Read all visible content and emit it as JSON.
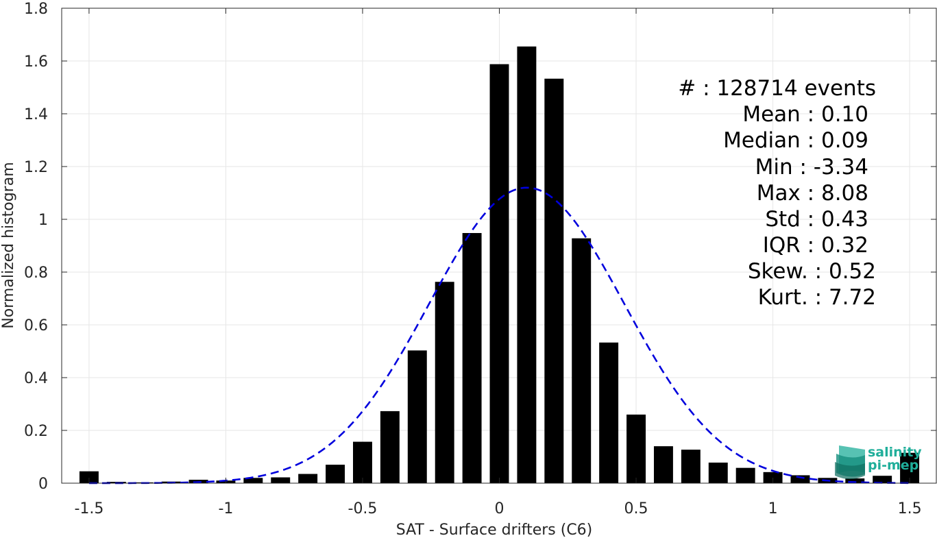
{
  "chart_data": {
    "type": "bar",
    "xlabel": "SAT - Surface drifters (C6)",
    "ylabel": "Normalized histogram",
    "xlim": [
      -1.6,
      1.6
    ],
    "ylim": [
      0,
      1.8
    ],
    "grid": true,
    "x_ticks": [
      -1.5,
      -1,
      -0.5,
      0,
      0.5,
      1,
      1.5
    ],
    "x_tick_labels": [
      "-1.5",
      "-1",
      "-0.5",
      "0",
      "0.5",
      "1",
      "1.5"
    ],
    "y_ticks": [
      0,
      0.2,
      0.4,
      0.6,
      0.8,
      1,
      1.2,
      1.4,
      1.6,
      1.8
    ],
    "y_tick_labels": [
      "0",
      "0.2",
      "0.4",
      "0.6",
      "0.8",
      "1",
      "1.2",
      "1.4",
      "1.6",
      "1.8"
    ],
    "bar_width": 0.07,
    "bar_color": "#000000",
    "bins": [
      {
        "x": -1.5,
        "y": 0.045
      },
      {
        "x": -1.4,
        "y": 0.005
      },
      {
        "x": -1.3,
        "y": 0.003
      },
      {
        "x": -1.2,
        "y": 0.006
      },
      {
        "x": -1.1,
        "y": 0.013
      },
      {
        "x": -1.0,
        "y": 0.01
      },
      {
        "x": -0.9,
        "y": 0.02
      },
      {
        "x": -0.8,
        "y": 0.022
      },
      {
        "x": -0.7,
        "y": 0.035
      },
      {
        "x": -0.6,
        "y": 0.07
      },
      {
        "x": -0.5,
        "y": 0.157
      },
      {
        "x": -0.4,
        "y": 0.273
      },
      {
        "x": -0.3,
        "y": 0.503
      },
      {
        "x": -0.2,
        "y": 0.763
      },
      {
        "x": -0.1,
        "y": 0.948
      },
      {
        "x": 0.0,
        "y": 1.588
      },
      {
        "x": 0.1,
        "y": 1.655
      },
      {
        "x": 0.2,
        "y": 1.533
      },
      {
        "x": 0.3,
        "y": 0.928
      },
      {
        "x": 0.4,
        "y": 0.533
      },
      {
        "x": 0.5,
        "y": 0.26
      },
      {
        "x": 0.6,
        "y": 0.14
      },
      {
        "x": 0.7,
        "y": 0.127
      },
      {
        "x": 0.8,
        "y": 0.078
      },
      {
        "x": 0.9,
        "y": 0.058
      },
      {
        "x": 1.0,
        "y": 0.042
      },
      {
        "x": 1.1,
        "y": 0.03
      },
      {
        "x": 1.2,
        "y": 0.02
      },
      {
        "x": 1.3,
        "y": 0.018
      },
      {
        "x": 1.4,
        "y": 0.028
      },
      {
        "x": 1.5,
        "y": 0.115
      }
    ],
    "fit_curve": {
      "style": "dashed",
      "color": "#0000dd",
      "mean": 0.1,
      "std": 0.357,
      "peak": 1.12,
      "x_range": [
        -1.5,
        1.5
      ]
    },
    "annotations": [
      {
        "label": "#  ",
        "value": "128714 events"
      },
      {
        "label": "Mean",
        "value": "0.10"
      },
      {
        "label": "Median",
        "value": "0.09"
      },
      {
        "label": "Min",
        "value": "-3.34"
      },
      {
        "label": "Max",
        "value": "8.08"
      },
      {
        "label": "Std",
        "value": "0.43"
      },
      {
        "label": "IQR",
        "value": "0.32"
      },
      {
        "label": "Skew.",
        "value": "0.52"
      },
      {
        "label": "Kurt.",
        "value": "7.72"
      }
    ],
    "stats_lines": [
      "#  : 128714 events",
      "Mean : 0.10",
      "Median : 0.09",
      "Min : -3.34",
      "Max : 8.08",
      "Std : 0.43",
      "IQR : 0.32",
      "Skew. : 0.52",
      "Kurt. : 7.72"
    ],
    "legend_position": "none"
  },
  "logo": {
    "line1": "salinity",
    "line2": "pi-mep",
    "color": "#1fae9a"
  }
}
